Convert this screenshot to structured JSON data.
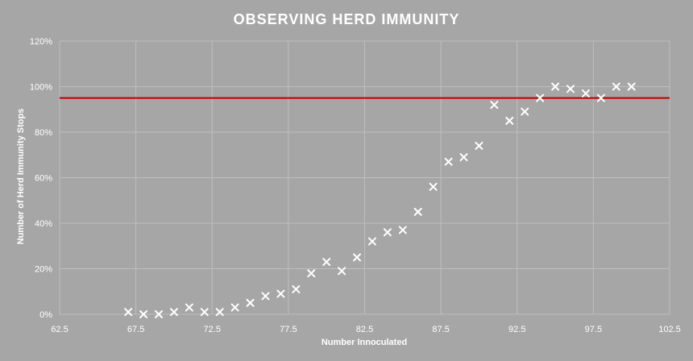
{
  "chart_data": {
    "type": "scatter",
    "title": "OBSERVING  HERD IMMUNITY",
    "xlabel": "Number Innoculated",
    "ylabel": "Number of Herd Immunity Stops",
    "xlim": [
      62.5,
      102.5
    ],
    "x_ticks": [
      "62.5",
      "67.5",
      "72.5",
      "77.5",
      "82.5",
      "87.5",
      "92.5",
      "97.5",
      "102.5"
    ],
    "ylim": [
      0,
      1.2
    ],
    "y_ticks": [
      "0%",
      "20%",
      "40%",
      "60%",
      "80%",
      "100%",
      "120%"
    ],
    "grid": true,
    "reference_line": {
      "y": 0.95,
      "color": "#c00000"
    },
    "marker_color": "#ffffff",
    "background_color": "#a6a6a6",
    "series": [
      {
        "x": [
          67,
          68,
          69,
          70,
          71,
          72,
          73,
          74,
          75,
          76,
          77,
          78,
          79,
          80,
          81,
          82,
          83,
          84,
          85,
          86,
          87,
          88,
          89,
          90,
          91,
          92,
          93,
          94,
          95,
          96,
          97,
          98,
          99,
          100
        ],
        "y": [
          0.01,
          0.0,
          0.0,
          0.01,
          0.03,
          0.01,
          0.01,
          0.03,
          0.05,
          0.08,
          0.09,
          0.11,
          0.18,
          0.23,
          0.19,
          0.25,
          0.32,
          0.36,
          0.37,
          0.45,
          0.56,
          0.67,
          0.69,
          0.74,
          0.92,
          0.85,
          0.89,
          0.95,
          1.0,
          0.99,
          0.97,
          0.95,
          1.0,
          1.0
        ]
      }
    ]
  }
}
